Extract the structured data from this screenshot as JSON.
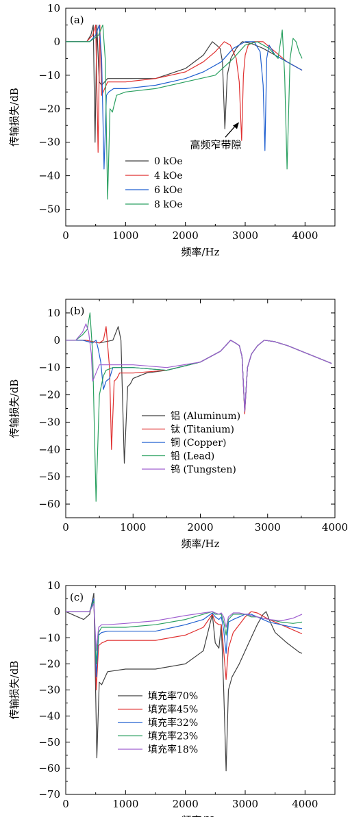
{
  "chart_data": [
    {
      "type": "line",
      "panel_label": "(a)",
      "xlabel": "频率/Hz",
      "ylabel": "传输损失/dB",
      "xlim": [
        0,
        4500
      ],
      "ylim": [
        -55,
        10
      ],
      "xticks": [
        0,
        1000,
        2000,
        3000,
        4000
      ],
      "yticks": [
        10,
        0,
        -10,
        -20,
        -30,
        -40,
        -50
      ],
      "legend_position": "lower-left",
      "annotation": {
        "text": "高频窄带隙",
        "x": 2920,
        "y": -24
      },
      "series": [
        {
          "name": "0 kOe",
          "color": "#404040",
          "x": [
            0,
            200,
            350,
            420,
            460,
            490,
            520,
            560,
            600,
            700,
            1000,
            1500,
            2000,
            2300,
            2450,
            2520,
            2580,
            2620,
            2660,
            2700,
            2760,
            2850,
            2950,
            3100,
            3300,
            3500,
            3700,
            3900,
            3950
          ],
          "y": [
            0,
            0,
            0,
            2,
            5,
            -30,
            5,
            -12,
            -13,
            -11,
            -11,
            -11,
            -8,
            -4,
            0,
            -1,
            -2,
            -6,
            -26,
            -10,
            -5,
            -2,
            0,
            -0.5,
            -2,
            -4,
            -6,
            -8,
            -8.5
          ]
        },
        {
          "name": "4 kOe",
          "color": "#e03030",
          "x": [
            0,
            200,
            350,
            450,
            500,
            540,
            570,
            600,
            650,
            700,
            800,
            1000,
            1500,
            2000,
            2300,
            2500,
            2650,
            2750,
            2850,
            2900,
            2940,
            2970,
            3000,
            3050,
            3150,
            3300,
            3500,
            3700,
            3900,
            3950
          ],
          "y": [
            0,
            0,
            0,
            2,
            5,
            -33,
            5,
            -16,
            -14,
            -12,
            -12,
            -12,
            -11,
            -9,
            -6,
            -3,
            0,
            -1,
            -5,
            -12,
            -29.5,
            -10,
            -4,
            -1,
            0,
            0,
            -3,
            -6,
            -8,
            -8.5
          ]
        },
        {
          "name": "6 kOe",
          "color": "#2060d0",
          "x": [
            0,
            200,
            400,
            500,
            560,
            600,
            640,
            680,
            720,
            800,
            1000,
            1500,
            2000,
            2300,
            2600,
            2800,
            3000,
            3150,
            3250,
            3300,
            3330,
            3360,
            3400,
            3500,
            3700,
            3900,
            3950
          ],
          "y": [
            0,
            0,
            0,
            2,
            5,
            -5,
            -38,
            -16,
            -15,
            -14,
            -14,
            -13,
            -11,
            -9,
            -6,
            -2,
            0,
            0,
            -3,
            -13,
            -32.5,
            -5,
            -1,
            -4,
            -6,
            -8,
            -8.5
          ]
        },
        {
          "name": "8 kOe",
          "color": "#2aa060",
          "x": [
            0,
            200,
            400,
            550,
            620,
            660,
            700,
            740,
            780,
            850,
            1000,
            1500,
            2000,
            2500,
            2800,
            3000,
            3200,
            3400,
            3550,
            3620,
            3660,
            3700,
            3750,
            3800,
            3850,
            3900,
            3950
          ],
          "y": [
            0,
            0,
            0,
            2,
            5,
            -5,
            -47,
            -20,
            -21,
            -16,
            -15,
            -14,
            -12,
            -10,
            -5,
            -1,
            0,
            -2,
            -5,
            3.5,
            -10,
            -38,
            -5,
            1,
            0,
            -3,
            -5
          ]
        }
      ]
    },
    {
      "type": "line",
      "panel_label": "(b)",
      "xlabel": "频率/Hz",
      "ylabel": "传输损失/dB",
      "xlim": [
        0,
        4000
      ],
      "ylim": [
        -65,
        15
      ],
      "xticks": [
        0,
        1000,
        2000,
        3000,
        4000
      ],
      "yticks": [
        10,
        0,
        -10,
        -20,
        -30,
        -40,
        -50,
        -60
      ],
      "legend_position": "lower-right",
      "series": [
        {
          "name": "铝 (Aluminum)",
          "color": "#404040",
          "x": [
            0,
            300,
            500,
            700,
            780,
            820,
            870,
            920,
            960,
            1000,
            1200,
            1500,
            2000,
            2300,
            2450,
            2520,
            2580,
            2620,
            2660,
            2700,
            2760,
            2850,
            2950,
            3100,
            3300,
            3500,
            3700,
            3900,
            3950
          ],
          "y": [
            0,
            0,
            -1,
            0,
            5,
            0,
            -45,
            -17,
            -16,
            -14,
            -12,
            -11,
            -8,
            -4,
            0,
            -1,
            -2,
            -6,
            -26,
            -10,
            -5,
            -2,
            0,
            -0.5,
            -2,
            -4,
            -6,
            -8,
            -8.5
          ]
        },
        {
          "name": "钛 (Titanium)",
          "color": "#e03030",
          "x": [
            0,
            300,
            500,
            560,
            600,
            650,
            680,
            720,
            760,
            800,
            1000,
            1500,
            2000,
            2300,
            2450,
            2520,
            2580,
            2620,
            2660,
            2700,
            2760,
            2850,
            2950,
            3100,
            3300,
            3500,
            3700,
            3900,
            3950
          ],
          "y": [
            0,
            0,
            -1,
            0,
            5,
            -10,
            -40,
            -15,
            -14,
            -12,
            -12,
            -11,
            -8,
            -4,
            0,
            -1,
            -2,
            -6,
            -27,
            -10,
            -5,
            -2,
            0,
            -0.5,
            -2,
            -4,
            -6,
            -8,
            -8.5
          ]
        },
        {
          "name": "铜 (Copper)",
          "color": "#2060d0",
          "x": [
            0,
            250,
            400,
            450,
            480,
            520,
            560,
            600,
            650,
            700,
            1000,
            1500,
            2000,
            2300,
            2450,
            2520,
            2580,
            2620,
            2660,
            2700,
            2760,
            2850,
            2950,
            3100,
            3300,
            3500,
            3700,
            3900,
            3950
          ],
          "y": [
            0,
            0,
            -1,
            0,
            -3,
            -8,
            -18,
            -15,
            -14,
            -10,
            -10,
            -11,
            -8,
            -4,
            0,
            -1,
            -2,
            -6,
            -26,
            -10,
            -5,
            -2,
            0,
            -0.5,
            -2,
            -4,
            -6,
            -8,
            -8.5
          ]
        },
        {
          "name": "铅 (Lead)",
          "color": "#2aa060",
          "x": [
            0,
            150,
            250,
            320,
            360,
            400,
            450,
            500,
            560,
            600,
            700,
            1000,
            1500,
            2000,
            2300,
            2450,
            2520,
            2580,
            2620,
            2660,
            2700,
            2760,
            2850,
            2950,
            3100,
            3300,
            3500,
            3700,
            3900,
            3950
          ],
          "y": [
            0,
            0,
            2,
            4,
            10,
            -5,
            -59,
            -20,
            -13,
            -11,
            -10,
            -10,
            -11,
            -8,
            -4,
            0,
            -1,
            -2,
            -6,
            -26,
            -10,
            -5,
            -2,
            0,
            -0.5,
            -2,
            -4,
            -6,
            -8,
            -8.5
          ]
        },
        {
          "name": "钨 (Tungsten)",
          "color": "#9f5fd0",
          "x": [
            0,
            150,
            250,
            300,
            340,
            380,
            400,
            450,
            500,
            600,
            800,
            1000,
            1500,
            2000,
            2300,
            2450,
            2520,
            2580,
            2620,
            2660,
            2700,
            2760,
            2850,
            2950,
            3100,
            3300,
            3500,
            3700,
            3900,
            3950
          ],
          "y": [
            0,
            0,
            3,
            6,
            3,
            -5,
            -15,
            -12,
            -9,
            -9,
            -9,
            -9,
            -10,
            -8,
            -4,
            0,
            -1,
            -2,
            -6,
            -26,
            -10,
            -5,
            -2,
            0,
            -0.5,
            -2,
            -4,
            -6,
            -8,
            -8.5
          ]
        }
      ]
    },
    {
      "type": "line",
      "panel_label": "(c)",
      "xlabel": "频率/Hz",
      "ylabel": "传输损失/dB",
      "xlim": [
        0,
        4500
      ],
      "ylim": [
        -70,
        10
      ],
      "xticks": [
        0,
        1000,
        2000,
        3000,
        4000
      ],
      "yticks": [
        10,
        0,
        -10,
        -20,
        -30,
        -40,
        -50,
        -60,
        -70
      ],
      "legend_position": "lower-left",
      "series": [
        {
          "name": "填充率70%",
          "color": "#404040",
          "x": [
            0,
            100,
            200,
            300,
            400,
            470,
            520,
            560,
            600,
            700,
            1000,
            1500,
            2000,
            2300,
            2450,
            2500,
            2560,
            2600,
            2640,
            2680,
            2720,
            2780,
            2900,
            3000,
            3100,
            3200,
            3300,
            3350,
            3400,
            3500,
            3700,
            3900,
            3950
          ],
          "y": [
            0,
            -1,
            -2,
            -3,
            -1,
            7,
            -56,
            -27,
            -28,
            -23,
            -22,
            -22,
            -20,
            -15,
            -1,
            -12,
            -14,
            -5,
            -30,
            -61,
            -30,
            -25,
            -20,
            -15,
            -10,
            -5,
            -1,
            0,
            -3,
            -8,
            -12,
            -15.5,
            -16
          ]
        },
        {
          "name": "填充率45%",
          "color": "#e03030",
          "x": [
            0,
            200,
            400,
            470,
            510,
            550,
            600,
            700,
            1000,
            1500,
            2000,
            2300,
            2450,
            2500,
            2560,
            2600,
            2640,
            2680,
            2720,
            2800,
            2900,
            3000,
            3100,
            3200,
            3400,
            3600,
            3800,
            3950
          ],
          "y": [
            0,
            0,
            0,
            5,
            -30,
            -13,
            -12,
            -11,
            -11,
            -11,
            -9,
            -6,
            -1,
            -4,
            -5,
            -5,
            -15,
            -26,
            -14,
            -8,
            -5,
            -2,
            0,
            -0.5,
            -3,
            -5,
            -7,
            -8.5
          ]
        },
        {
          "name": "填充率32%",
          "color": "#2060d0",
          "x": [
            0,
            200,
            400,
            470,
            510,
            550,
            600,
            700,
            1000,
            1500,
            2000,
            2300,
            2450,
            2500,
            2560,
            2600,
            2640,
            2680,
            2720,
            2800,
            2900,
            3000,
            3100,
            3200,
            3400,
            3600,
            3800,
            3950
          ],
          "y": [
            0,
            0,
            0,
            5,
            -25,
            -9,
            -8,
            -7.5,
            -7.5,
            -7.5,
            -5,
            -3,
            -0.5,
            -2,
            -3,
            -2,
            -7,
            -16,
            -4,
            -3,
            -2,
            -1,
            -1,
            -2,
            -4,
            -5,
            -6,
            -6.5
          ]
        },
        {
          "name": "填充率23%",
          "color": "#2aa060",
          "x": [
            0,
            200,
            400,
            470,
            510,
            550,
            600,
            700,
            1000,
            1500,
            2000,
            2300,
            2450,
            2500,
            2560,
            2600,
            2640,
            2680,
            2720,
            2800,
            2900,
            3000,
            3100,
            3200,
            3400,
            3600,
            3800,
            3950
          ],
          "y": [
            0,
            0,
            0,
            4,
            -20,
            -8,
            -6,
            -6,
            -6,
            -5,
            -3,
            -1,
            0,
            -1,
            -1,
            -1,
            -4,
            -9,
            -3,
            -1,
            -1,
            -1,
            -2,
            -2,
            -3,
            -4,
            -4.5,
            -4
          ]
        },
        {
          "name": "填充率18%",
          "color": "#9f5fd0",
          "x": [
            0,
            200,
            400,
            470,
            510,
            550,
            600,
            700,
            1000,
            1500,
            2000,
            2300,
            2450,
            2500,
            2560,
            2600,
            2640,
            2680,
            2720,
            2800,
            2900,
            3000,
            3100,
            3200,
            3400,
            3600,
            3800,
            3950
          ],
          "y": [
            0,
            0,
            0,
            3,
            -15,
            -6,
            -5,
            -5,
            -4.5,
            -3.5,
            -1.5,
            -0.5,
            0,
            -0.5,
            -1,
            -0.5,
            -2,
            -6,
            -2,
            -0.5,
            -0.5,
            -1,
            -1.5,
            -2,
            -3,
            -3.5,
            -2.5,
            -1
          ]
        }
      ]
    }
  ]
}
